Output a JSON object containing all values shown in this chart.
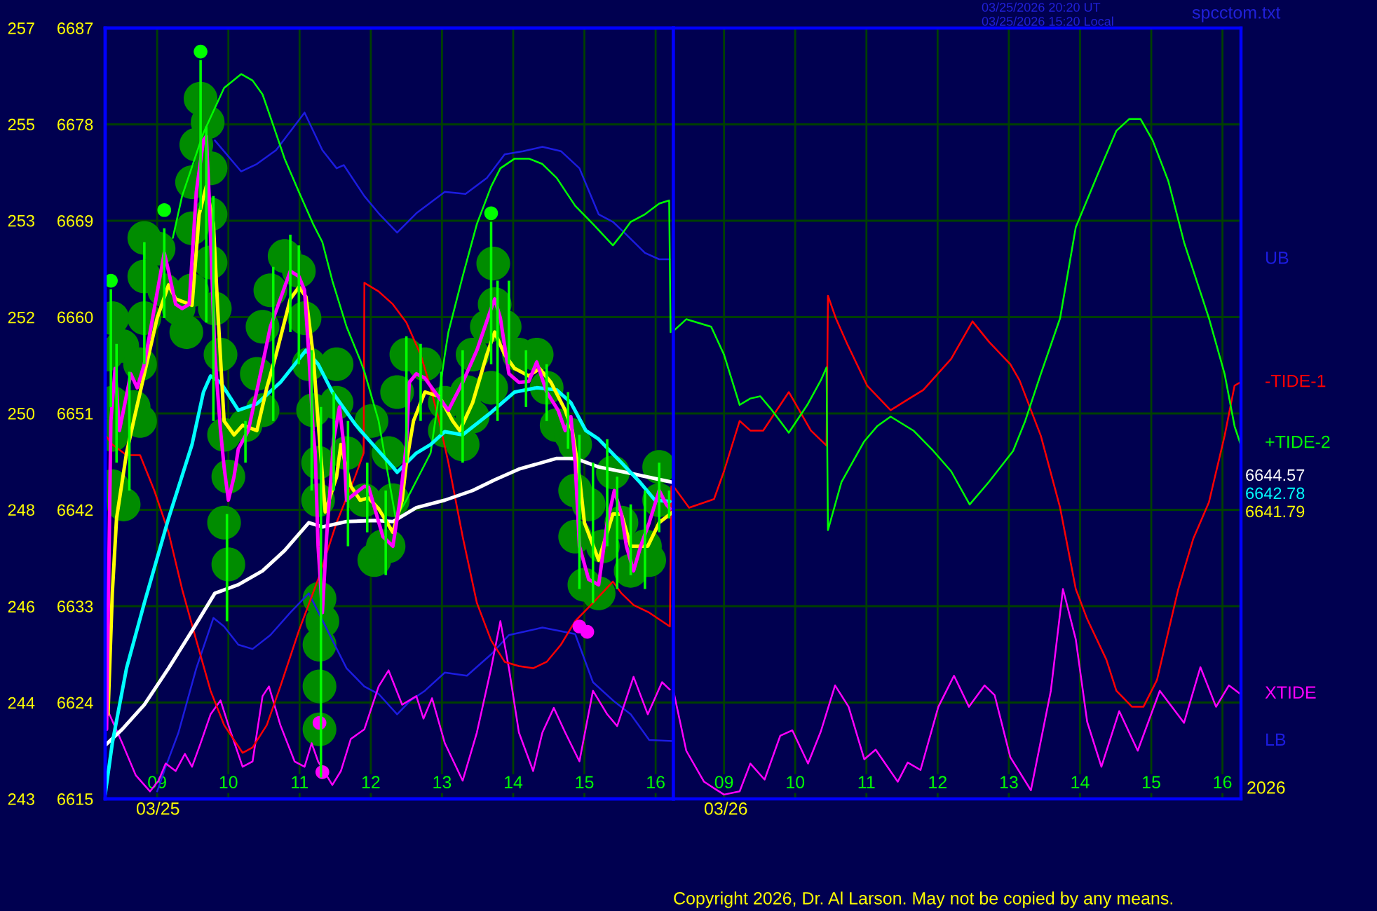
{
  "chart_data": [
    {
      "type": "line",
      "xlim": [
        8.27,
        16.25
      ],
      "ylim": [
        6615,
        6687
      ],
      "xticks": [
        {
          "value": 9,
          "label": "09"
        },
        10,
        11,
        12,
        13,
        14,
        15,
        16
      ],
      "yticks": [
        6615,
        6624,
        6633,
        6642,
        6651,
        6660,
        6669,
        6678,
        6687
      ],
      "y2lim": [
        242.65,
        256.91
      ],
      "y2ticks": [
        {
          "value": 242.65,
          "label": "243"
        },
        {
          "value": 244.43,
          "label": "244"
        },
        {
          "value": 246.21,
          "label": "246"
        },
        {
          "value": 248.0,
          "label": "248"
        },
        {
          "value": 249.78,
          "label": "250"
        },
        {
          "value": 251.56,
          "label": "252"
        },
        {
          "value": 253.35,
          "label": "253"
        },
        {
          "value": 255.13,
          "label": "255"
        },
        {
          "value": 256.91,
          "label": "257"
        }
      ],
      "grid": true,
      "series": [
        {
          "type": "bubble",
          "color": "#008c00",
          "marker": "circle",
          "x": [
            8.37,
            8.29,
            8.51,
            8.37,
            8.37,
            8.37,
            8.53,
            8.67,
            8.76,
            8.76,
            8.82,
            8.82,
            8.82,
            9.02,
            9.1,
            9.3,
            9.41,
            9.49,
            9.49,
            9.49,
            9.55,
            9.61,
            9.71,
            9.75,
            9.75,
            9.75,
            9.81,
            9.89,
            9.94,
            10.0,
            9.94,
            10.0,
            10.48,
            10.4,
            10.48,
            10.59,
            10.79,
            10.99,
            11.07,
            11.13,
            11.19,
            11.52,
            11.52,
            11.26,
            11.26,
            11.66,
            11.91,
            12.17,
            12.05,
            11.28,
            11.32,
            11.28,
            11.28,
            11.28,
            10.24,
            12.5,
            12.37,
            12.76,
            13.04,
            12.25,
            12.31,
            12.25,
            12.01,
            13.72,
            13.74,
            13.63,
            13.88,
            13.43,
            14.08,
            13.35,
            14.33,
            14.47,
            13.69,
            13.04,
            13.29,
            13.43,
            14.61,
            14.81,
            14.87,
            14.87,
            14.87,
            15.0,
            15.2,
            15.4,
            15.52,
            15.65,
            15.85,
            16.05,
            16.05,
            15.91,
            15.26,
            15.06
          ],
          "values": [
            6659.9,
            6656.5,
            6657.3,
            6652.0,
            6649.0,
            6644.2,
            6642.5,
            6651.6,
            6655.6,
            6650.3,
            6667.4,
            6663.8,
            6659.9,
            6666.4,
            6662.5,
            6660.8,
            6658.6,
            6662.5,
            6668.3,
            6672.6,
            6676.1,
            6680.4,
            6678.2,
            6673.9,
            6669.6,
            6665.1,
            6660.8,
            6656.5,
            6649.0,
            6645.1,
            6640.8,
            6636.9,
            6659.1,
            6654.7,
            6651.3,
            6662.5,
            6665.7,
            6664.3,
            6659.9,
            6655.6,
            6651.3,
            6655.6,
            6652.0,
            6646.4,
            6642.9,
            6647.3,
            6642.9,
            6638.6,
            6637.3,
            6633.7,
            6631.6,
            6629.4,
            6625.5,
            6621.5,
            6649.9,
            6656.5,
            6653.0,
            6655.6,
            6652.0,
            6647.3,
            6642.9,
            6638.6,
            6650.3,
            6665.0,
            6661.2,
            6659.1,
            6659.1,
            6656.5,
            6656.5,
            6653.0,
            6656.5,
            6653.4,
            6653.4,
            6649.4,
            6648.1,
            6650.7,
            6649.9,
            6649.0,
            6648.1,
            6643.8,
            6639.5,
            6635.0,
            6634.2,
            6645.5,
            6640.8,
            6636.3,
            6638.6,
            6646.0,
            6642.9,
            6637.3,
            6638.6,
            6642.5
          ],
          "sizes": [
            1,
            1,
            1,
            1,
            1,
            1,
            1,
            1,
            1,
            1,
            1,
            1,
            1,
            1,
            1,
            1,
            1,
            1,
            1,
            1,
            1,
            1,
            1,
            1,
            1,
            1,
            1,
            1,
            1,
            1,
            1,
            1,
            1,
            1,
            1,
            1,
            1,
            1,
            1,
            1,
            1,
            1,
            1,
            1,
            1,
            1,
            1,
            1,
            1,
            1,
            1,
            1,
            1,
            1,
            1,
            1,
            1,
            1,
            1,
            1,
            1,
            1,
            1,
            1,
            1,
            1,
            1,
            1,
            1,
            1,
            1,
            1,
            1,
            1,
            1,
            1,
            1,
            1,
            1,
            1,
            1,
            1,
            1,
            1,
            1,
            1,
            1,
            1,
            1,
            1,
            1,
            1
          ]
        },
        {
          "name": "UB",
          "color": "#1c1ce0",
          "x": [
            9.81,
            10.18,
            10.4,
            10.67,
            11.07,
            11.32,
            11.52,
            11.62,
            11.91,
            12.11,
            12.37,
            12.64,
            13.04,
            13.33,
            13.63,
            13.88,
            14.14,
            14.41,
            14.67,
            14.93,
            15.2,
            15.4,
            15.59,
            15.85,
            16.05,
            16.2
          ],
          "values": [
            6676.5,
            6673.6,
            6674.3,
            6675.6,
            6679.1,
            6675.6,
            6673.9,
            6674.2,
            6671.3,
            6669.7,
            6667.9,
            6669.7,
            6671.7,
            6671.5,
            6673.0,
            6675.2,
            6675.5,
            6675.9,
            6675.5,
            6673.9,
            6669.6,
            6668.9,
            6667.7,
            6666.0,
            6665.4,
            6665.4
          ]
        },
        {
          "name": "LB",
          "color": "#1c1ce0",
          "x": [
            9.0,
            9.12,
            9.3,
            9.55,
            9.79,
            9.94,
            10.14,
            10.34,
            10.59,
            10.87,
            11.13,
            11.66,
            11.91,
            12.11,
            12.37,
            12.56,
            12.76,
            13.04,
            13.35,
            13.69,
            13.94,
            14.41,
            14.87,
            15.12,
            15.4,
            15.65,
            15.91,
            16.24
          ],
          "values": [
            6615.7,
            6618.0,
            6621.2,
            6627.2,
            6631.9,
            6631.1,
            6629.4,
            6629.0,
            6630.3,
            6632.4,
            6634.2,
            6627.2,
            6625.5,
            6624.8,
            6622.9,
            6624.2,
            6625.1,
            6626.8,
            6626.5,
            6628.5,
            6630.3,
            6631.0,
            6630.4,
            6625.9,
            6624.2,
            6622.9,
            6620.5,
            6620.4
          ]
        },
        {
          "color": "#ff00ff",
          "x": [
            8.31,
            8.51,
            8.7,
            8.9,
            9.02,
            9.12,
            9.26,
            9.39,
            9.49,
            9.61,
            9.75,
            9.89,
            10.0,
            10.2,
            10.34,
            10.48,
            10.57,
            10.73,
            10.93,
            11.07,
            11.17,
            11.26,
            11.46,
            11.58,
            11.72,
            11.91,
            12.11,
            12.25,
            12.44,
            12.64,
            12.74,
            12.86,
            13.04,
            13.29,
            13.49,
            13.69,
            13.82,
            13.94,
            14.08,
            14.28,
            14.41,
            14.57,
            14.73,
            14.93,
            15.12,
            15.32,
            15.46,
            15.69,
            15.89,
            16.09,
            16.2
          ],
          "values": [
            6623.2,
            6620.2,
            6617.2,
            6615.7,
            6616.7,
            6618.3,
            6617.6,
            6619.2,
            6618.0,
            6620.2,
            6622.9,
            6624.2,
            6621.9,
            6618.0,
            6618.5,
            6624.6,
            6625.5,
            6621.9,
            6618.5,
            6618.0,
            6620.2,
            6618.5,
            6616.3,
            6617.6,
            6620.6,
            6621.5,
            6625.5,
            6627.0,
            6623.8,
            6624.6,
            6622.5,
            6624.4,
            6620.2,
            6616.7,
            6621.2,
            6627.2,
            6631.6,
            6627.2,
            6621.2,
            6617.6,
            6621.2,
            6623.5,
            6621.2,
            6618.5,
            6625.1,
            6622.9,
            6621.8,
            6626.4,
            6622.9,
            6625.9,
            6625.2
          ]
        },
        {
          "color": "#ff0000",
          "x": [
            8.27,
            8.37,
            8.57,
            8.76,
            8.96,
            9.16,
            9.35,
            9.55,
            9.75,
            9.94,
            10.2,
            10.34,
            10.54,
            10.73,
            10.99,
            11.26,
            11.52,
            11.78,
            11.9,
            11.91,
            12.11,
            12.31,
            12.5,
            12.7,
            12.84,
            12.96,
            13.09,
            13.29,
            13.49,
            13.69,
            13.88,
            14.08,
            14.28,
            14.47,
            14.67,
            14.87,
            15.12,
            15.4,
            15.52,
            15.69,
            15.91,
            16.2,
            16.22
          ],
          "values": [
            6649.0,
            6648.1,
            6647.1,
            6647.1,
            6643.8,
            6639.9,
            6634.6,
            6629.8,
            6625.1,
            6621.9,
            6619.3,
            6619.8,
            6621.9,
            6625.5,
            6630.7,
            6635.5,
            6640.8,
            6645.1,
            6647.3,
            6663.2,
            6662.4,
            6661.2,
            6659.5,
            6656.5,
            6653.4,
            6650.3,
            6646.4,
            6639.5,
            6633.3,
            6629.8,
            6627.8,
            6627.4,
            6627.2,
            6627.8,
            6629.4,
            6631.6,
            6633.3,
            6635.3,
            6634.2,
            6633.1,
            6632.4,
            6631.1,
            6644.2
          ]
        },
        {
          "color": "#00ff00",
          "x": [
            9.22,
            9.35,
            9.65,
            9.94,
            10.18,
            10.34,
            10.48,
            10.59,
            10.79,
            10.99,
            11.19,
            11.32,
            11.46,
            11.66,
            11.85,
            11.91,
            12.11,
            12.35,
            12.5,
            12.84,
            13.04,
            13.09,
            13.29,
            13.49,
            13.69,
            13.82,
            14.02,
            14.22,
            14.41,
            14.61,
            14.87,
            15.12,
            15.4,
            15.52,
            15.65,
            15.85,
            16.05,
            16.19,
            16.21
          ],
          "values": [
            6667.4,
            6671.3,
            6677.2,
            6681.4,
            6682.7,
            6682.1,
            6680.8,
            6678.7,
            6674.8,
            6671.7,
            6668.7,
            6667.0,
            6663.4,
            6659.1,
            6656.0,
            6654.9,
            6650.3,
            6641.2,
            6642.9,
            6647.3,
            6656.5,
            6658.6,
            6663.8,
            6668.7,
            6672.2,
            6673.9,
            6674.8,
            6674.8,
            6674.3,
            6673.0,
            6670.4,
            6668.7,
            6666.7,
            6667.7,
            6668.9,
            6669.6,
            6670.6,
            6670.9,
            6658.6
          ]
        },
        {
          "color": "#ffffff",
          "x": [
            8.27,
            8.51,
            8.82,
            9.16,
            9.49,
            9.81,
            10.14,
            10.48,
            10.79,
            11.13,
            11.32,
            11.66,
            12.05,
            12.31,
            12.64,
            13.04,
            13.43,
            13.74,
            14.08,
            14.61,
            14.87,
            15.2,
            15.65,
            16.24
          ],
          "values": [
            6620.0,
            6621.5,
            6623.8,
            6627.2,
            6630.7,
            6634.2,
            6635.0,
            6636.3,
            6638.2,
            6640.8,
            6640.4,
            6640.9,
            6641.0,
            6640.9,
            6642.2,
            6642.9,
            6643.8,
            6644.8,
            6645.8,
            6646.8,
            6646.8,
            6646.0,
            6645.4,
            6644.57
          ]
        },
        {
          "color": "#00ffff",
          "x": [
            8.27,
            8.37,
            8.57,
            8.82,
            9.16,
            9.49,
            9.65,
            9.75,
            9.89,
            10.14,
            10.4,
            10.73,
            11.09,
            11.26,
            11.46,
            11.78,
            11.91,
            12.31,
            12.37,
            12.64,
            12.84,
            13.04,
            13.29,
            13.69,
            14.02,
            14.33,
            14.61,
            14.81,
            15.02,
            15.2,
            15.52,
            15.79,
            15.99,
            16.2
          ],
          "values": [
            6615.4,
            6620.2,
            6627.2,
            6633.3,
            6641.2,
            6648.1,
            6653.0,
            6654.5,
            6653.9,
            6651.3,
            6651.9,
            6653.9,
            6656.9,
            6655.6,
            6653.0,
            6650.0,
            6649.0,
            6646.0,
            6645.5,
            6647.3,
            6648.1,
            6649.3,
            6649.0,
            6651.1,
            6653.0,
            6653.4,
            6653.2,
            6652.0,
            6649.4,
            6648.6,
            6646.4,
            6644.5,
            6642.9,
            6642.78
          ]
        },
        {
          "color": "#ffff00",
          "x": [
            8.31,
            8.37,
            8.43,
            8.57,
            8.67,
            8.82,
            9.0,
            9.16,
            9.26,
            9.49,
            9.59,
            9.69,
            9.79,
            9.85,
            9.94,
            10.08,
            10.2,
            10.4,
            10.54,
            10.67,
            10.87,
            10.99,
            11.09,
            11.19,
            11.26,
            11.36,
            11.52,
            11.58,
            11.72,
            11.85,
            11.97,
            12.11,
            12.31,
            12.44,
            12.5,
            12.6,
            12.76,
            12.96,
            13.15,
            13.25,
            13.43,
            13.63,
            13.74,
            13.88,
            14.02,
            14.22,
            14.37,
            14.53,
            14.73,
            14.83,
            14.93,
            15.0,
            15.2,
            15.4,
            15.52,
            15.65,
            15.89,
            16.05,
            16.24
          ],
          "values": [
            6622.9,
            6634.2,
            6641.2,
            6647.3,
            6650.3,
            6654.7,
            6659.9,
            6663.0,
            6661.7,
            6661.1,
            6669.6,
            6672.2,
            6668.7,
            6660.8,
            6650.3,
            6649.0,
            6649.9,
            6649.4,
            6653.4,
            6656.5,
            6661.7,
            6662.8,
            6661.9,
            6656.5,
            6650.3,
            6641.8,
            6645.1,
            6648.1,
            6644.2,
            6642.9,
            6643.1,
            6642.1,
            6639.9,
            6642.9,
            6646.4,
            6650.3,
            6653.0,
            6652.6,
            6650.3,
            6649.4,
            6652.0,
            6656.5,
            6658.6,
            6656.5,
            6655.2,
            6654.5,
            6655.2,
            6653.9,
            6651.3,
            6649.4,
            6645.1,
            6640.8,
            6637.3,
            6641.6,
            6641.6,
            6638.6,
            6638.6,
            6640.8,
            6641.79
          ]
        },
        {
          "color": "#ff00ff",
          "x": [
            8.29,
            8.35,
            8.41,
            8.47,
            8.63,
            8.72,
            8.82,
            8.96,
            9.1,
            9.16,
            9.26,
            9.35,
            9.45,
            9.55,
            9.65,
            9.69,
            9.73,
            9.81,
            9.89,
            9.94,
            10.0,
            10.08,
            10.14,
            10.28,
            10.48,
            10.59,
            10.87,
            10.99,
            11.07,
            11.13,
            11.19,
            11.22,
            11.26,
            11.32,
            11.38,
            11.48,
            11.56,
            11.62,
            11.66,
            11.91,
            11.97,
            12.17,
            12.31,
            12.41,
            12.5,
            12.54,
            12.64,
            12.76,
            12.9,
            13.09,
            13.29,
            13.49,
            13.69,
            13.74,
            13.82,
            13.94,
            14.08,
            14.22,
            14.33,
            14.47,
            14.63,
            14.73,
            14.81,
            14.87,
            14.93,
            15.06,
            15.2,
            15.32,
            15.42,
            15.52,
            15.59,
            15.69,
            15.79,
            15.91,
            16.05,
            16.15,
            16.2
          ],
          "values": [
            6621.5,
            6650.3,
            6655.2,
            6649.4,
            6654.7,
            6653.4,
            6655.6,
            6660.8,
            6666.0,
            6664.3,
            6661.2,
            6660.8,
            6661.2,
            6671.7,
            6676.5,
            6676.9,
            6671.3,
            6656.5,
            6649.4,
            6646.0,
            6642.9,
            6645.1,
            6647.7,
            6649.4,
            6655.6,
            6659.1,
            6664.3,
            6663.8,
            6662.5,
            6656.5,
            6649.4,
            6647.3,
            6638.6,
            6632.4,
            6639.5,
            6648.6,
            6651.6,
            6648.1,
            6642.9,
            6644.2,
            6644.1,
            6639.5,
            6638.6,
            6642.9,
            6648.1,
            6653.9,
            6654.7,
            6654.3,
            6653.0,
            6651.3,
            6653.9,
            6656.9,
            6660.8,
            6661.7,
            6659.9,
            6654.7,
            6653.9,
            6654.0,
            6655.8,
            6653.0,
            6651.3,
            6649.4,
            6650.7,
            6646.4,
            6638.6,
            6635.5,
            6635.0,
            6640.8,
            6643.8,
            6641.6,
            6638.6,
            6636.3,
            6638.6,
            6640.8,
            6643.8,
            6642.5,
            6642.1
          ]
        },
        {
          "type": "scatter",
          "color": "#00ff00",
          "marker": "circle",
          "x": [
            8.35,
            9.1,
            9.61,
            13.69
          ],
          "values": [
            6663.4,
            6670.0,
            6684.8,
            6669.7
          ]
        },
        {
          "type": "scatter",
          "color": "#ff00ff",
          "marker": "circle",
          "x": [
            11.28,
            11.32,
            14.93,
            15.04
          ],
          "values": [
            6622.1,
            6617.5,
            6631.1,
            6630.6
          ]
        },
        {
          "type": "bar",
          "color": "#00ff00",
          "x": [
            8.35,
            8.43,
            8.61,
            8.82,
            9.1,
            9.61,
            9.69,
            9.79,
            9.98,
            10.24,
            10.63,
            10.87,
            10.99,
            11.17,
            11.3,
            11.48,
            11.68,
            11.95,
            12.21,
            12.5,
            12.7,
            12.99,
            13.29,
            13.69,
            13.78,
            13.94,
            14.18,
            14.47,
            14.77,
            14.93,
            15.12,
            15.32,
            15.46,
            15.65,
            15.85,
            16.05,
            16.19
          ],
          "base": [
            6651.6,
            6646.4,
            6643.8,
            6655.6,
            6659.9,
            6670.0,
            6659.5,
            6650.3,
            6631.6,
            6646.4,
            6650.3,
            6658.6,
            6655.6,
            6643.8,
            6617.0,
            6643.8,
            6638.6,
            6639.9,
            6635.9,
            6646.4,
            6650.3,
            6649.0,
            6646.4,
            6655.6,
            6650.3,
            6655.6,
            6651.6,
            6650.3,
            6647.7,
            6634.6,
            6633.3,
            6638.6,
            6634.6,
            6635.9,
            6634.6,
            6639.9,
            6641.2
          ],
          "values": [
            11.0,
            11.1,
            11.1,
            11.4,
            8.4,
            14.0,
            18.3,
            21.0,
            10.0,
            3.9,
            14.4,
            9.1,
            11.1,
            13.1,
            34.6,
            9.2,
            11.7,
            6.5,
            7.9,
            11.8,
            7.2,
            5.9,
            10.5,
            13.3,
            13.1,
            7.8,
            5.3,
            5.3,
            5.3,
            14.4,
            13.1,
            10.0,
            10.5,
            6.6,
            9.2,
            6.5,
            2.6
          ]
        }
      ],
      "annotations": [
        "03/25",
        "03/25/2026 20:20 UT",
        "03/25/2026 15:20 Local",
        "spcctom.txt",
        "6644.57",
        "6642.78",
        "6641.79",
        "Copyright 2026, Dr. Al Larson. May not be copied by any means."
      ]
    },
    {
      "type": "line",
      "xlim": [
        8.29,
        16.26
      ],
      "ylim": [
        6615,
        6687
      ],
      "xticks": [
        {
          "value": 9,
          "label": "09"
        },
        10,
        11,
        12,
        13,
        14,
        15,
        16
      ],
      "yticks": [
        6615,
        6624,
        6633,
        6642,
        6651,
        6660,
        6669,
        6678,
        6687
      ],
      "tick_labels": "x",
      "grid": true,
      "series": [
        {
          "name": "XTIDE",
          "color": "#ff00ff",
          "x": [
            8.29,
            8.47,
            8.72,
            9.0,
            9.22,
            9.37,
            9.57,
            9.79,
            9.96,
            10.18,
            10.36,
            10.56,
            10.75,
            10.97,
            11.13,
            11.44,
            11.58,
            11.76,
            12.01,
            12.23,
            12.44,
            12.66,
            12.8,
            13.02,
            13.31,
            13.59,
            13.76,
            13.94,
            14.1,
            14.3,
            14.55,
            14.81,
            15.12,
            15.46,
            15.69,
            15.91,
            16.09,
            16.25
          ],
          "values": [
            6625.1,
            6619.5,
            6616.6,
            6615.4,
            6615.7,
            6618.3,
            6616.8,
            6620.9,
            6621.4,
            6618.3,
            6621.3,
            6625.6,
            6623.6,
            6618.7,
            6619.6,
            6616.6,
            6618.4,
            6617.7,
            6623.6,
            6626.5,
            6623.6,
            6625.6,
            6624.7,
            6618.9,
            6615.8,
            6625.1,
            6634.6,
            6629.9,
            6622.2,
            6618.0,
            6623.2,
            6619.5,
            6625.1,
            6622.1,
            6627.3,
            6623.6,
            6625.6,
            6624.8
          ]
        },
        {
          "name": "-TIDE-1",
          "color": "#ff0000",
          "x": [
            8.29,
            8.51,
            8.86,
            9.0,
            9.22,
            9.37,
            9.55,
            9.91,
            10.22,
            10.44,
            10.46,
            10.57,
            10.73,
            11.01,
            11.34,
            11.58,
            11.8,
            12.19,
            12.49,
            12.72,
            13.02,
            13.15,
            13.45,
            13.72,
            13.94,
            14.1,
            14.37,
            14.51,
            14.73,
            14.89,
            15.08,
            15.38,
            15.59,
            15.81,
            16.03,
            16.17,
            16.25
          ],
          "values": [
            6644.2,
            6642.2,
            6643.0,
            6645.6,
            6650.3,
            6649.4,
            6649.4,
            6653.0,
            6649.4,
            6648.0,
            6662.0,
            6659.9,
            6657.5,
            6653.6,
            6651.3,
            6652.3,
            6653.2,
            6656.1,
            6659.6,
            6657.7,
            6655.6,
            6654.1,
            6648.9,
            6642.2,
            6634.6,
            6631.8,
            6628.0,
            6625.1,
            6623.6,
            6623.6,
            6626.1,
            6634.6,
            6639.3,
            6642.7,
            6648.9,
            6653.6,
            6653.9
          ]
        },
        {
          "name": "+TIDE-2",
          "color": "#00ff00",
          "x": [
            8.29,
            8.47,
            8.82,
            9.0,
            9.22,
            9.37,
            9.51,
            9.65,
            9.91,
            10.17,
            10.36,
            10.44,
            10.46,
            10.65,
            10.97,
            11.15,
            11.34,
            11.66,
            11.94,
            12.19,
            12.45,
            12.72,
            13.06,
            13.23,
            13.45,
            13.72,
            13.94,
            14.24,
            14.51,
            14.69,
            14.85,
            15.02,
            15.24,
            15.46,
            15.81,
            16.03,
            16.17,
            16.25
          ],
          "values": [
            6658.7,
            6659.8,
            6659.1,
            6656.5,
            6651.8,
            6652.4,
            6652.6,
            6651.5,
            6649.2,
            6651.8,
            6654.1,
            6655.3,
            6640.1,
            6644.6,
            6648.4,
            6649.8,
            6650.7,
            6649.4,
            6647.5,
            6645.6,
            6642.5,
            6644.6,
            6647.5,
            6650.3,
            6654.7,
            6659.9,
            6668.4,
            6673.2,
            6677.4,
            6678.5,
            6678.5,
            6676.5,
            6672.7,
            6667.0,
            6659.9,
            6654.7,
            6649.8,
            6648.2
          ]
        }
      ],
      "annotations": [
        "03/26",
        "2026"
      ]
    }
  ]
}
